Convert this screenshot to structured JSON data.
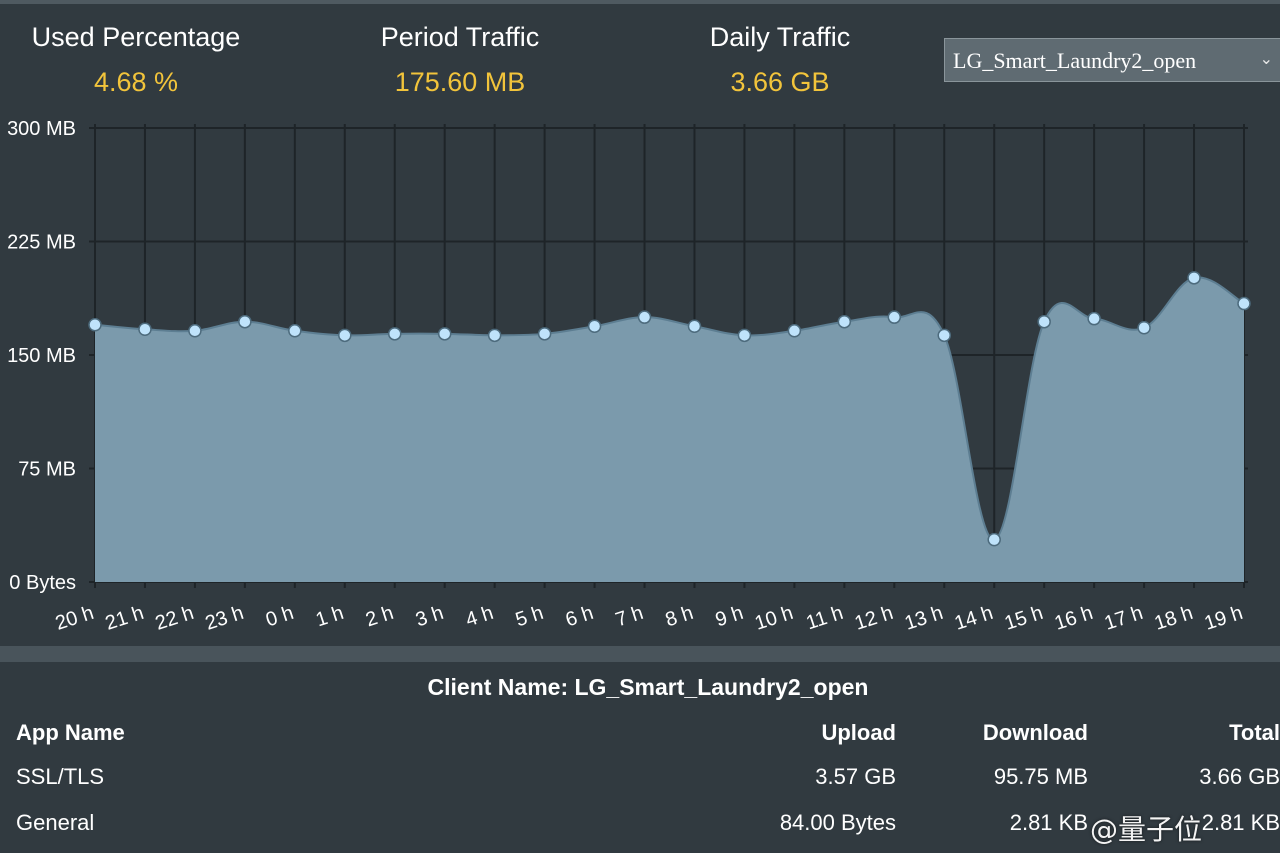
{
  "stats": {
    "used_percentage": {
      "label": "Used Percentage",
      "value": "4.68 %"
    },
    "period_traffic": {
      "label": "Period Traffic",
      "value": "175.60 MB"
    },
    "daily_traffic": {
      "label": "Daily Traffic",
      "value": "3.66 GB"
    }
  },
  "client_select": {
    "selected": "LG_Smart_Laundry2_open",
    "icon": "chevron-down-icon"
  },
  "colors": {
    "background": "#313a40",
    "accent": "#f2c43b",
    "area_fill": "#7b9aac",
    "point": "#bfe3fb"
  },
  "chart_data": {
    "type": "area",
    "x": [
      "20 h",
      "21 h",
      "22 h",
      "23 h",
      "0 h",
      "1 h",
      "2 h",
      "3 h",
      "4 h",
      "5 h",
      "6 h",
      "7 h",
      "8 h",
      "9 h",
      "10 h",
      "11 h",
      "12 h",
      "13 h",
      "14 h",
      "15 h",
      "16 h",
      "17 h",
      "18 h",
      "19 h"
    ],
    "series": [
      {
        "values": [
          170,
          167,
          166,
          172,
          166,
          163,
          164,
          164,
          163,
          164,
          169,
          175,
          169,
          163,
          166,
          172,
          175,
          163,
          28,
          172,
          174,
          168,
          201,
          184
        ]
      }
    ],
    "y_unit": "MB",
    "ylim": [
      0,
      300
    ],
    "yticks": [
      {
        "value": 0,
        "label": "0 Bytes"
      },
      {
        "value": 75,
        "label": "75 MB"
      },
      {
        "value": 150,
        "label": "150 MB"
      },
      {
        "value": 225,
        "label": "225 MB"
      },
      {
        "value": 300,
        "label": "300 MB"
      }
    ],
    "grid": true
  },
  "client_table": {
    "title": "Client Name: LG_Smart_Laundry2_open",
    "headers": {
      "app": "App Name",
      "upload": "Upload",
      "download": "Download",
      "total": "Total"
    },
    "rows": [
      {
        "app": "SSL/TLS",
        "upload": "3.57 GB",
        "download": "95.75 MB",
        "total": "3.66 GB"
      },
      {
        "app": "General",
        "upload": "84.00 Bytes",
        "download": "2.81 KB",
        "total": "2.81 KB"
      }
    ]
  },
  "watermark": "@量子位"
}
